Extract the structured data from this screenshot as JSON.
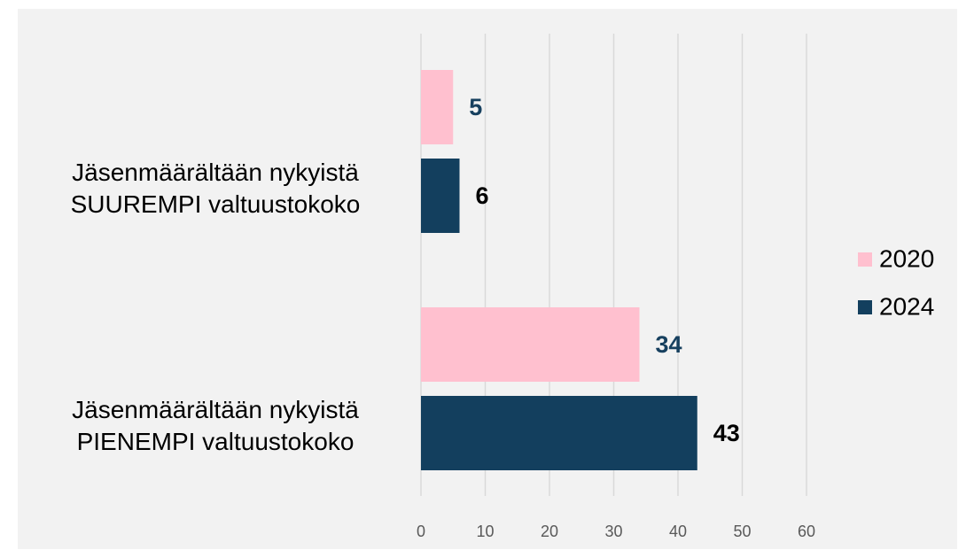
{
  "chart_data": {
    "type": "hbar",
    "categories": [
      "Jäsenmäärältään nykyistä SUUREMPI valtuustokoko",
      "Jäsenmäärältään nykyistä PIENEMPI valtuustokoko"
    ],
    "series": [
      {
        "name": "2020",
        "color": "#ffc0cf",
        "label_color": "#17405f",
        "values": [
          5,
          34
        ]
      },
      {
        "name": "2024",
        "color": "#133f5e",
        "label_color": "#000000",
        "values": [
          6,
          43
        ]
      }
    ],
    "xlim": [
      0,
      60
    ],
    "xticks": [
      0,
      10,
      20,
      30,
      40,
      50,
      60
    ],
    "grid": true,
    "legend": "right"
  }
}
